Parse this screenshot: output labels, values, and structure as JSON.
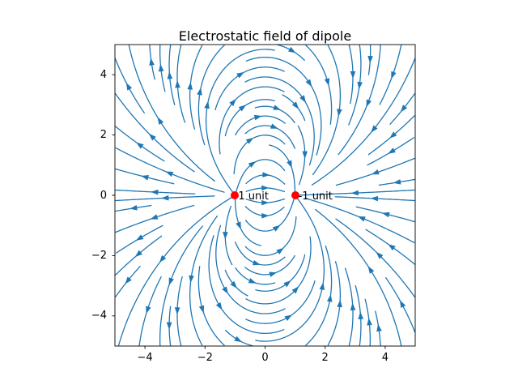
{
  "window": {
    "background": "#ffffff"
  },
  "chart_data": {
    "type": "streamplot",
    "title": "Electrostatic field of dipole",
    "xlabel": "",
    "ylabel": "",
    "xlim": [
      -5,
      5
    ],
    "ylim": [
      -5,
      5
    ],
    "xticks": [
      -4,
      -2,
      0,
      2,
      4
    ],
    "xtick_labels": [
      "−4",
      "−2",
      "0",
      "2",
      "4"
    ],
    "yticks": [
      -4,
      -2,
      0,
      2,
      4
    ],
    "ytick_labels": [
      "−4",
      "−2",
      "0",
      "2",
      "4"
    ],
    "grid": false,
    "legend": "none",
    "field_model": "electric field of two point charges (dipole), E = sum q_i*(r-r_i)/|r-r_i|^3",
    "charges": [
      {
        "x": -1,
        "y": 0,
        "q": 1,
        "label": "1 unit",
        "marker": "o",
        "marker_color": "#ff0000"
      },
      {
        "x": 1,
        "y": 0,
        "q": -1,
        "label": "-1 unit",
        "marker": "o",
        "marker_color": "#ff0000"
      }
    ],
    "stream": {
      "color": "#1f77b4",
      "density": 1,
      "linewidth": 1.3,
      "arrow_style": "filled-triangle-at-midpoint"
    },
    "axes_color": "#000000"
  }
}
